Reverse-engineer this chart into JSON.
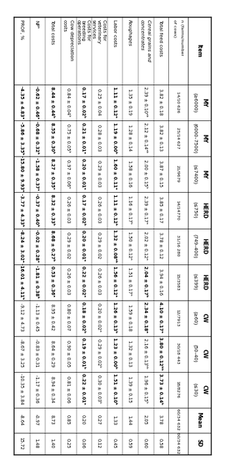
{
  "col_headers_line1": [
    "Item",
    "MY",
    "MY",
    "MY",
    "HERD",
    "HERD",
    "HERD",
    "CW",
    "CW",
    "CW",
    "Mean",
    "SD"
  ],
  "col_headers_line2": [
    "",
    "(≥6000)",
    "(6000–7500)",
    "(≤7400)",
    "(≤750)",
    "(749–400)",
    "(≤399)",
    "(≥60)",
    "(50–40)",
    "(≤30)",
    "",
    ""
  ],
  "n_row_label": "n (farms/number\nof cows)",
  "n_row_vals": [
    "14/10 626",
    "25/14 627",
    "21/9679",
    "14/14770",
    "31/16 280",
    "15/3583",
    "12/7913",
    "30/18 443",
    "18/8276",
    "60/34 632",
    "60/34 632"
  ],
  "rows": [
    {
      "label": "Total feed costs",
      "label_italic": false,
      "values": [
        "3.82 ± 0.18",
        "3.82 ± 0.13",
        "3.87 ± 0.15",
        "3.85 ± 0.17",
        "3.78 ± 0.12",
        "3.94 ± 0.16",
        "4.10 ± 0.17ᵃ",
        "3.80 ± 0.12ᵇᵇ",
        "3.73 ± 0.14ᵇ",
        "3.78",
        "0.58"
      ],
      "bold": [
        false,
        false,
        false,
        false,
        false,
        false,
        true,
        true,
        true,
        false,
        false
      ]
    },
    {
      "label": "Cereal grains and\nconcentrates",
      "label_italic": true,
      "values": [
        "2.39 ± 0.10ᵃᵇ",
        "2.12 ± 0.14ᵃᵇ",
        "2.00 ± 0.15ᵇ",
        "2.39 ± 0.17ᵃ",
        "2.02 ± 0.12ᵃ",
        "2.04 ± 0.17ᵇ",
        "2.34 ± 0.18ᵃ",
        "2.16 ± 0.13ᵇᵇ",
        "1.96 ± 0.15ᵇ",
        "2.05",
        "0.60"
      ],
      "bold": [
        false,
        false,
        false,
        false,
        false,
        true,
        true,
        false,
        false,
        false,
        false
      ]
    },
    {
      "label": "Roughages",
      "label_italic": true,
      "values": [
        "1.35 ± 0.19",
        "1.28 ± 0.14",
        "1.58 ± 0.16",
        "1.16 ± 0.17ᵇ",
        "1.50 ± 0.12ᵃ",
        "1.51 ± 0.17ᵃ",
        "1.59 ± 0.18",
        "1.32 ± 0.13",
        "1.39 ± 0.15",
        "1.44",
        "0.59"
      ],
      "bold": [
        false,
        false,
        false,
        false,
        false,
        false,
        false,
        false,
        false,
        false,
        false
      ]
    },
    {
      "label": "Labor costs",
      "label_italic": false,
      "values": [
        "1.11 ± 0.12ᵃ",
        "1.19 ± 0.00ᵇ",
        "1.60 ± 0.11ᵃ",
        "1.11 ± 0.12ᵇ",
        "1.32 ± 0.08ᵃᵇ",
        "1.56 ± 0.12ᵃ",
        "1.26 ± 0.13ᵇ",
        "1.23 ± 0.00ᵇ",
        "1.51 ± 0.10ᵇ",
        "1.33",
        "0.45"
      ],
      "bold": [
        true,
        true,
        true,
        true,
        true,
        true,
        true,
        true,
        true,
        false,
        false
      ]
    },
    {
      "label": "Costs for\nveterinary\nservices",
      "label_italic": false,
      "values": [
        "0.25 ± 0.04",
        "0.28 ± 0.03",
        "0.29 ± 0.03",
        "0.26 ± 0.03",
        "0.29 ± 0.02",
        "0.26 ± 0.03",
        "0.20 ± 0.02ᵃ",
        "0.29 ± 0.02ᵇ",
        "0.30 ± 0.03ᵇ",
        "0.27",
        "0.12"
      ],
      "bold": [
        false,
        false,
        false,
        false,
        false,
        false,
        false,
        false,
        false,
        false,
        false
      ]
    },
    {
      "label": "Costs for\nbreeding\noperations",
      "label_italic": false,
      "values": [
        "0.17 ± 0.02ᵇ",
        "0.21 ± 0.01ᵃ",
        "0.20 ± 0.01ᵃ",
        "0.17 ± 0.02ᵇ",
        "0.20 ± 0.01ᵃ",
        "0.22 ± 0.02ᵃ",
        "0.18 ± 0.02ᵇ",
        "0.19 ± 0.01ᵇ",
        "0.22 ± 0.01ᵃ",
        "0.20",
        "0.06"
      ],
      "bold": [
        true,
        true,
        true,
        true,
        true,
        true,
        true,
        true,
        true,
        false,
        false
      ]
    },
    {
      "label": "Cow depreciation\ncosts",
      "label_italic": false,
      "values": [
        "0.84 ± 0.04ᵇ",
        "0.75 ± 0.05ᵇ",
        "0.97 ± 0.06ᵃ",
        "0.26 ± 0.03",
        "0.29 ± 0.02",
        "0.26 ± 0.03",
        "0.80 ± 0.07",
        "0.90 ± 0.05",
        "0.81 ± 0.06",
        "0.85",
        "0.25"
      ],
      "bold": [
        false,
        false,
        false,
        false,
        false,
        false,
        false,
        false,
        false,
        false,
        false
      ]
    },
    {
      "label": "Total costs",
      "label_italic": false,
      "values": [
        "8.44 ± 0.44ᵇ",
        "8.55 ± 0.30ᵇ",
        "8.27 ± 0.35ᵃ",
        "8.32 ± 0.33ᵇ",
        "8.68 ± 0.27ᵇ",
        "0.53 ± 0.36ᵃ",
        "8.95 ± 0.42",
        "8.64 ± 0.29",
        "8.94 ± 0.34",
        "8.73",
        "1.40"
      ],
      "bold": [
        true,
        true,
        true,
        true,
        true,
        true,
        false,
        false,
        false,
        false,
        false
      ]
    },
    {
      "label": "NPᵇ",
      "label_italic": false,
      "values": [
        "-0.62 ± 0.46ᵃ",
        "-0.68 ± 0.32ᵇ",
        "-1.58 ± 0.37ᵃ",
        "-0.37 ± 0.40ᵇ",
        "-0.02 ± 0.28ᵃ",
        "-1.81 ± 0.38ᵇ",
        "-1.13 ± 0.45",
        "-0.83 ± 0.31",
        "-1.17 ± 0.36",
        "-0.97",
        "1.48"
      ],
      "bold": [
        true,
        true,
        true,
        true,
        true,
        true,
        false,
        false,
        false,
        false,
        false
      ]
    },
    {
      "label": "PROF, %",
      "label_italic": false,
      "values": [
        "-4.35 ± 4.83ᵃ",
        "-5.86 ± 3.35ᵇ",
        "-15.80 ± 9.93ᵃ",
        "-3.77 ± 4.33ᵇ",
        "-8.24 ± 3.02ᵃ",
        "-16.01 ± 4.11ᵇ",
        "-9.12 ± 4.73",
        "-8.67 ± 3.25",
        "-10.35 ± 3.84",
        "-8.64",
        "15.72"
      ],
      "bold": [
        true,
        true,
        true,
        true,
        true,
        true,
        false,
        false,
        false,
        false,
        false
      ]
    }
  ],
  "font_size_header": 5.5,
  "font_size_data": 4.8,
  "font_size_item": 5.0,
  "font_size_n": 4.5
}
